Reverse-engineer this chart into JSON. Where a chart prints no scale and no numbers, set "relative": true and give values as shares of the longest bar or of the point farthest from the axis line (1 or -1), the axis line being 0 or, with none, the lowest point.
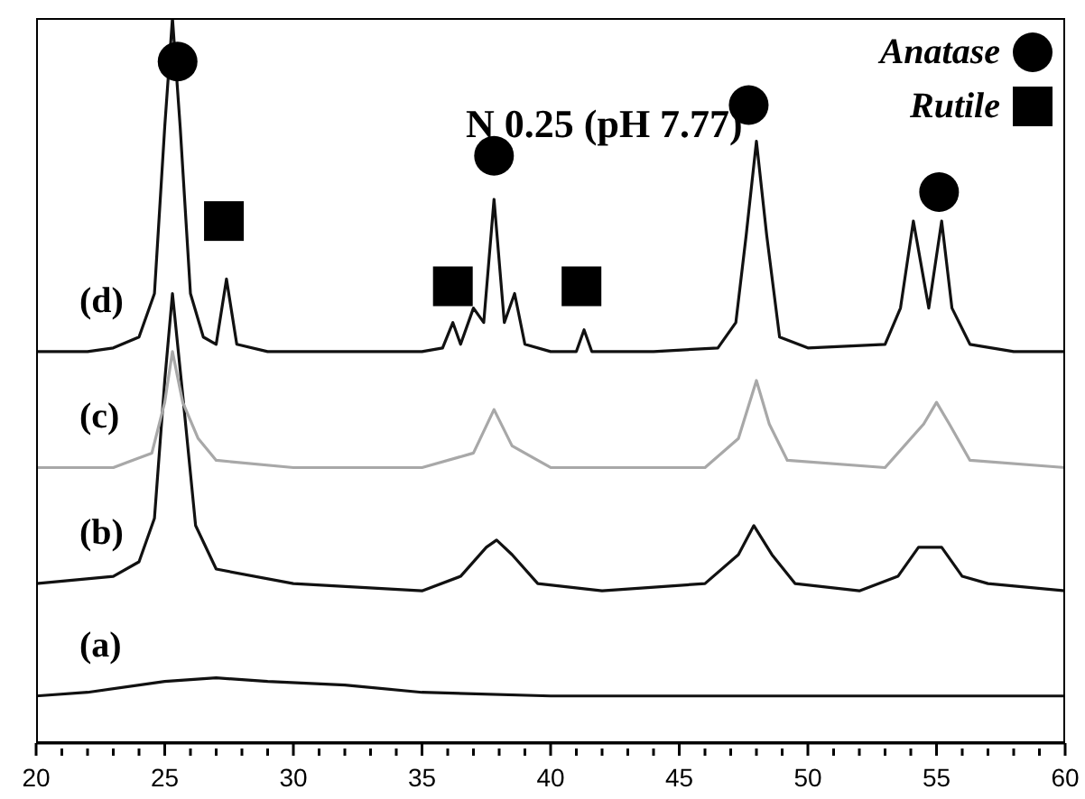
{
  "chart_data": {
    "type": "line",
    "relative": true,
    "annotations": [
      "N 0.25 (pH 7.77)"
    ],
    "xlim": [
      20,
      60
    ],
    "xticks": [
      20,
      {
        "value": 21,
        "label": null
      },
      {
        "value": 22,
        "label": null
      },
      {
        "value": 23,
        "label": null
      },
      {
        "value": 24,
        "label": null
      },
      25,
      {
        "value": 26,
        "label": null
      },
      {
        "value": 27,
        "label": null
      },
      {
        "value": 28,
        "label": null
      },
      {
        "value": 29,
        "label": null
      },
      30,
      {
        "value": 31,
        "label": null
      },
      {
        "value": 32,
        "label": null
      },
      {
        "value": 33,
        "label": null
      },
      {
        "value": 34,
        "label": null
      },
      35,
      {
        "value": 36,
        "label": null
      },
      {
        "value": 37,
        "label": null
      },
      {
        "value": 38,
        "label": null
      },
      {
        "value": 39,
        "label": null
      },
      40,
      {
        "value": 41,
        "label": null
      },
      {
        "value": 42,
        "label": null
      },
      {
        "value": 43,
        "label": null
      },
      {
        "value": 44,
        "label": null
      },
      45,
      {
        "value": 46,
        "label": null
      },
      {
        "value": 47,
        "label": null
      },
      {
        "value": 48,
        "label": null
      },
      {
        "value": 49,
        "label": null
      },
      50,
      {
        "value": 51,
        "label": null
      },
      {
        "value": 52,
        "label": null
      },
      {
        "value": 53,
        "label": null
      },
      {
        "value": 54,
        "label": null
      },
      55,
      {
        "value": 56,
        "label": null
      },
      {
        "value": 57,
        "label": null
      },
      {
        "value": 58,
        "label": null
      },
      {
        "value": 59,
        "label": null
      },
      60
    ],
    "legend": "top right",
    "marker": "none",
    "line_style": "solid",
    "series": [
      {
        "name": "(a)",
        "color": "#111111",
        "x": [
          20,
          22,
          25,
          27,
          29,
          32,
          35,
          40,
          50,
          60
        ],
        "values": [
          0.065,
          0.07,
          0.085,
          0.09,
          0.085,
          0.08,
          0.07,
          0.065,
          0.065,
          0.065
        ]
      },
      {
        "name": "(b)",
        "color": "#111111",
        "x": [
          20,
          23,
          24,
          24.6,
          25.0,
          25.3,
          25.7,
          26.2,
          27,
          30,
          35,
          36.5,
          37.5,
          37.9,
          38.5,
          39.5,
          42,
          46,
          47.3,
          47.9,
          48.6,
          49.5,
          52,
          53.5,
          54.3,
          55.2,
          56,
          57,
          60
        ],
        "values": [
          0.22,
          0.23,
          0.25,
          0.31,
          0.5,
          0.62,
          0.48,
          0.3,
          0.24,
          0.22,
          0.21,
          0.23,
          0.27,
          0.28,
          0.26,
          0.22,
          0.21,
          0.22,
          0.26,
          0.3,
          0.26,
          0.22,
          0.21,
          0.23,
          0.27,
          0.27,
          0.23,
          0.22,
          0.21
        ]
      },
      {
        "name": "(c)",
        "color": "#a8a8a8",
        "x": [
          20,
          23,
          24.5,
          25.0,
          25.3,
          25.7,
          26.3,
          27,
          30,
          35,
          37,
          37.8,
          38.5,
          40,
          46,
          47.3,
          48,
          48.5,
          49.2,
          53,
          54.5,
          55,
          55.5,
          56.3,
          60
        ],
        "values": [
          0.38,
          0.38,
          0.4,
          0.47,
          0.54,
          0.47,
          0.42,
          0.39,
          0.38,
          0.38,
          0.4,
          0.46,
          0.41,
          0.38,
          0.38,
          0.42,
          0.5,
          0.44,
          0.39,
          0.38,
          0.44,
          0.47,
          0.44,
          0.39,
          0.38
        ]
      },
      {
        "name": "(d)",
        "color": "#111111",
        "x": [
          20,
          22,
          23,
          24,
          24.6,
          25.0,
          25.3,
          25.6,
          26,
          26.5,
          27,
          27.4,
          27.8,
          29,
          32,
          35,
          35.8,
          36.2,
          36.5,
          37,
          37.4,
          37.8,
          38.2,
          38.6,
          39,
          40,
          41,
          41.3,
          41.6,
          44,
          46.5,
          47.2,
          47.6,
          48.0,
          48.4,
          48.9,
          50,
          53,
          53.6,
          54.1,
          54.7,
          55.2,
          55.6,
          56.3,
          58,
          60
        ],
        "values": [
          0.54,
          0.54,
          0.545,
          0.56,
          0.62,
          0.85,
          1,
          0.85,
          0.62,
          0.56,
          0.55,
          0.64,
          0.55,
          0.54,
          0.54,
          0.54,
          0.545,
          0.58,
          0.55,
          0.6,
          0.58,
          0.75,
          0.58,
          0.62,
          0.55,
          0.54,
          0.54,
          0.57,
          0.54,
          0.54,
          0.545,
          0.58,
          0.7,
          0.83,
          0.7,
          0.56,
          0.545,
          0.55,
          0.6,
          0.72,
          0.6,
          0.72,
          0.6,
          0.55,
          0.54,
          0.54
        ]
      },
      {
        "name": "Anatase",
        "type": "scatter",
        "marker": "circle",
        "color": "#000000",
        "x": [
          25.5,
          37.8,
          47.7,
          55.1
        ],
        "values": [
          0.94,
          0.81,
          0.88,
          0.76
        ]
      },
      {
        "name": "Rutile",
        "type": "scatter",
        "marker": "square",
        "color": "#000000",
        "x": [
          27.3,
          36.2,
          41.2
        ],
        "values": [
          0.72,
          0.63,
          0.63
        ]
      }
    ]
  }
}
